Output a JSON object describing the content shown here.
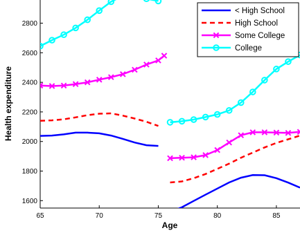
{
  "chart_data": {
    "type": "line",
    "xlabel": "Age",
    "ylabel": "Health expenditure",
    "xlim": [
      65,
      87
    ],
    "ylim": [
      1550,
      2980
    ],
    "x_ticks": [
      65,
      70,
      75,
      80,
      85
    ],
    "y_ticks": [
      1600,
      1800,
      2000,
      2200,
      2400,
      2600,
      2800
    ],
    "legend_position": "top-right",
    "series": [
      {
        "name": "< High School",
        "color": "#0000ff",
        "dash": "solid",
        "marker": "none",
        "segments": [
          [
            [
              65,
              2038
            ],
            [
              66,
              2040
            ],
            [
              67,
              2048
            ],
            [
              68,
              2060
            ],
            [
              69,
              2060
            ],
            [
              70,
              2055
            ],
            [
              71,
              2040
            ],
            [
              72,
              2018
            ],
            [
              73,
              1993
            ],
            [
              74,
              1975
            ],
            [
              75,
              1970
            ]
          ],
          [
            [
              76,
              1525
            ],
            [
              77,
              1555
            ],
            [
              78,
              1598
            ],
            [
              79,
              1640
            ],
            [
              80,
              1682
            ],
            [
              81,
              1723
            ],
            [
              82,
              1755
            ],
            [
              83,
              1773
            ],
            [
              84,
              1772
            ],
            [
              85,
              1752
            ],
            [
              86,
              1722
            ],
            [
              87,
              1688
            ]
          ]
        ]
      },
      {
        "name": "High School",
        "color": "#ff0000",
        "dash": "dashed",
        "marker": "none",
        "segments": [
          [
            [
              65,
              2140
            ],
            [
              66,
              2143
            ],
            [
              67,
              2150
            ],
            [
              68,
              2163
            ],
            [
              69,
              2178
            ],
            [
              70,
              2188
            ],
            [
              71,
              2190
            ],
            [
              72,
              2175
            ],
            [
              73,
              2155
            ],
            [
              74,
              2133
            ],
            [
              75,
              2105
            ]
          ],
          [
            [
              76,
              1723
            ],
            [
              77,
              1730
            ],
            [
              78,
              1752
            ],
            [
              79,
              1780
            ],
            [
              80,
              1815
            ],
            [
              81,
              1850
            ],
            [
              82,
              1890
            ],
            [
              83,
              1925
            ],
            [
              84,
              1960
            ],
            [
              85,
              1990
            ],
            [
              86,
              2015
            ],
            [
              87,
              2040
            ]
          ]
        ]
      },
      {
        "name": "Some College",
        "color": "#ff00ff",
        "dash": "solid",
        "marker": "x",
        "segments": [
          [
            [
              65,
              2378
            ],
            [
              66,
              2375
            ],
            [
              67,
              2378
            ],
            [
              68,
              2388
            ],
            [
              69,
              2400
            ],
            [
              70,
              2418
            ],
            [
              71,
              2435
            ],
            [
              72,
              2455
            ],
            [
              73,
              2485
            ],
            [
              74,
              2520
            ],
            [
              75,
              2548
            ],
            [
              75.5,
              2580
            ]
          ],
          [
            [
              76,
              1887
            ],
            [
              77,
              1890
            ],
            [
              78,
              1893
            ],
            [
              79,
              1908
            ],
            [
              80,
              1942
            ],
            [
              81,
              1993
            ],
            [
              82,
              2042
            ],
            [
              83,
              2062
            ],
            [
              84,
              2062
            ],
            [
              85,
              2060
            ],
            [
              86,
              2058
            ],
            [
              87,
              2065
            ]
          ]
        ]
      },
      {
        "name": "College",
        "color": "#00ffff",
        "dash": "solid",
        "marker": "circle",
        "segments": [
          [
            [
              65,
              2645
            ],
            [
              66,
              2685
            ],
            [
              67,
              2722
            ],
            [
              68,
              2768
            ],
            [
              69,
              2823
            ],
            [
              70,
              2885
            ],
            [
              71,
              2945
            ],
            [
              72,
              2985
            ],
            [
              73,
              2990
            ],
            [
              74,
              2965
            ],
            [
              75,
              2950
            ]
          ],
          [
            [
              76,
              2130
            ],
            [
              77,
              2137
            ],
            [
              78,
              2148
            ],
            [
              79,
              2165
            ],
            [
              80,
              2183
            ],
            [
              81,
              2210
            ],
            [
              82,
              2263
            ],
            [
              83,
              2335
            ],
            [
              84,
              2415
            ],
            [
              85,
              2490
            ],
            [
              86,
              2540
            ],
            [
              87,
              2585
            ]
          ]
        ]
      }
    ]
  }
}
